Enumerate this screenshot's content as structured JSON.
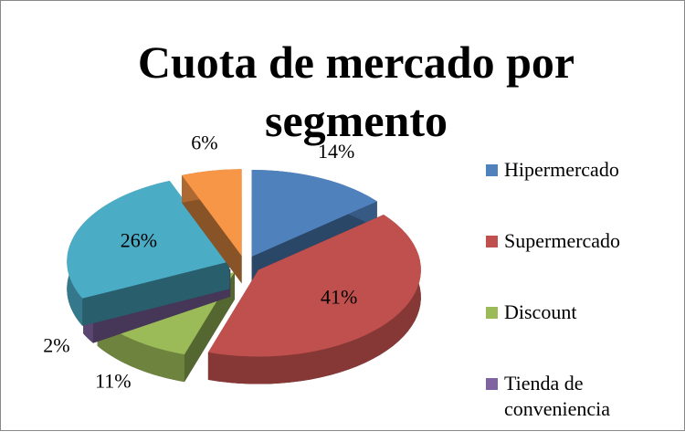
{
  "chart_data": {
    "type": "pie3d",
    "title": "Cuota de mercado por segmento",
    "categories": [
      "Hipermercado",
      "Supermercado",
      "Discount",
      "Tienda de conveniencia",
      null,
      null
    ],
    "values": [
      14,
      41,
      11,
      2,
      26,
      6
    ],
    "value_labels": [
      "14%",
      "41%",
      "11%",
      "2%",
      "26%",
      "6%"
    ],
    "colors": [
      "#4f81bd",
      "#c0504d",
      "#9bbb59",
      "#8064a2",
      "#4bacc6",
      "#f79646"
    ],
    "legend": "right"
  }
}
